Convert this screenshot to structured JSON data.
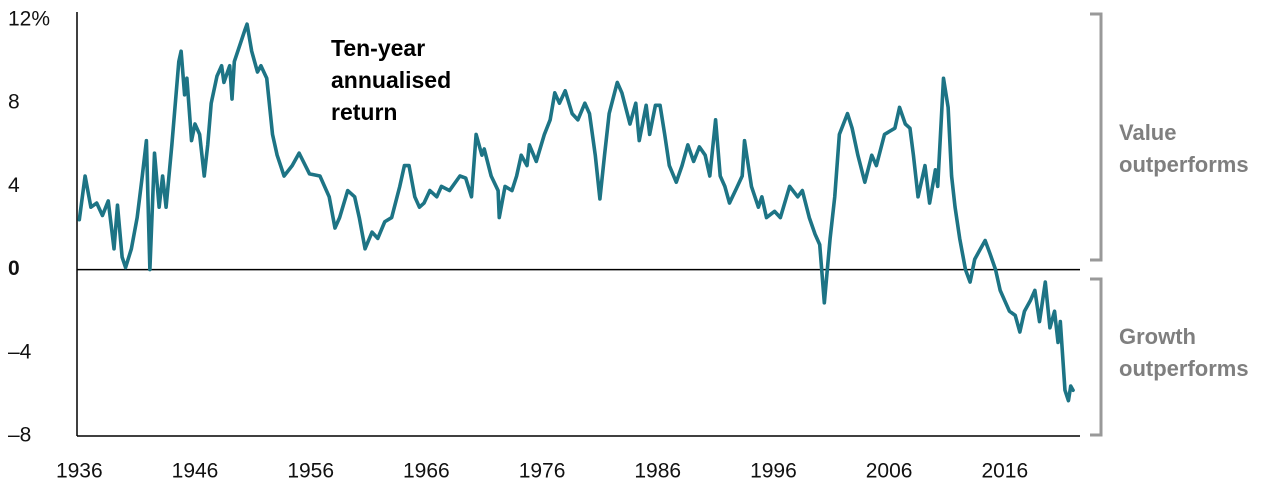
{
  "chart_data": {
    "type": "line",
    "annotation": [
      "Ten-year",
      "annualised",
      "return"
    ],
    "value_label": [
      "Value",
      "outperforms"
    ],
    "growth_label": [
      "Growth",
      "outperforms"
    ],
    "xlim": [
      1935.8,
      2022.5
    ],
    "xticks": [
      1936,
      1946,
      1956,
      1966,
      1976,
      1986,
      1996,
      2006,
      2016
    ],
    "ylim": [
      -8,
      12
    ],
    "yticks": [
      {
        "value": -8,
        "label": "–8"
      },
      {
        "value": -4,
        "label": "–4"
      },
      0,
      4,
      8,
      {
        "value": 12,
        "label": "12%"
      }
    ],
    "series": [
      {
        "color": "#1d7485",
        "x": [
          1936.0,
          1936.5,
          1937.0,
          1937.5,
          1938.0,
          1938.5,
          1939.0,
          1939.3,
          1939.7,
          1940.0,
          1940.5,
          1941.0,
          1941.4,
          1941.8,
          1942.1,
          1942.5,
          1942.9,
          1943.2,
          1943.5,
          1944.0,
          1944.6,
          1944.8,
          1945.1,
          1945.3,
          1945.7,
          1946.0,
          1946.4,
          1946.8,
          1947.1,
          1947.4,
          1947.9,
          1948.3,
          1948.5,
          1949.0,
          1949.2,
          1949.4,
          1950.3,
          1950.5,
          1950.9,
          1951.4,
          1951.7,
          1952.2,
          1952.7,
          1953.1,
          1953.7,
          1954.4,
          1955.0,
          1955.9,
          1956.8,
          1957.6,
          1958.1,
          1958.5,
          1959.2,
          1959.8,
          1960.2,
          1960.7,
          1961.3,
          1961.8,
          1962.4,
          1963.0,
          1963.7,
          1964.1,
          1964.5,
          1965.0,
          1965.4,
          1965.8,
          1966.3,
          1966.9,
          1967.3,
          1968.0,
          1968.9,
          1969.4,
          1969.9,
          1970.3,
          1970.8,
          1971.0,
          1971.6,
          1972.2,
          1972.3,
          1972.8,
          1973.4,
          1973.8,
          1974.2,
          1974.7,
          1974.9,
          1975.5,
          1976.2,
          1976.7,
          1977.1,
          1977.5,
          1978.0,
          1978.6,
          1979.1,
          1979.7,
          1980.1,
          1980.6,
          1981.0,
          1981.4,
          1981.8,
          1982.5,
          1982.9,
          1983.6,
          1984.1,
          1984.4,
          1985.0,
          1985.3,
          1985.8,
          1986.2,
          1986.6,
          1987.0,
          1987.6,
          1988.1,
          1988.6,
          1989.1,
          1989.6,
          1990.1,
          1990.5,
          1991.0,
          1991.4,
          1991.8,
          1992.2,
          1992.8,
          1993.3,
          1993.5,
          1994.1,
          1994.7,
          1995.0,
          1995.4,
          1996.1,
          1996.6,
          1997.4,
          1998.1,
          1998.5,
          1999.1,
          1999.6,
          2000.0,
          2000.4,
          2000.9,
          2001.3,
          2001.7,
          2002.4,
          2002.8,
          2003.3,
          2003.9,
          2004.5,
          2004.9,
          2005.6,
          2006.5,
          2006.9,
          2007.4,
          2007.8,
          2008.1,
          2008.5,
          2009.1,
          2009.5,
          2010.0,
          2010.2,
          2010.7,
          2011.1,
          2011.4,
          2011.7,
          2012.1,
          2012.6,
          2013.0,
          2013.4,
          2013.9,
          2014.3,
          2014.7,
          2015.2,
          2015.6,
          2016.0,
          2016.4,
          2016.9,
          2017.3,
          2017.7,
          2018.2,
          2018.6,
          2019.0,
          2019.5,
          2019.9,
          2020.3,
          2020.6,
          2020.8,
          2021.2,
          2021.5,
          2021.7,
          2021.9
        ],
        "values": [
          2.4,
          4.5,
          3.0,
          3.2,
          2.6,
          3.3,
          1.0,
          3.1,
          0.6,
          0.1,
          1.0,
          2.5,
          4.3,
          6.2,
          0.0,
          5.6,
          3.0,
          4.5,
          3.0,
          6.0,
          10.0,
          10.5,
          8.4,
          9.2,
          6.2,
          7.0,
          6.5,
          4.5,
          6.0,
          8.0,
          9.3,
          9.8,
          9.0,
          9.8,
          8.2,
          10.0,
          11.5,
          11.8,
          10.5,
          9.5,
          9.8,
          9.2,
          6.5,
          5.5,
          4.5,
          5.0,
          5.6,
          4.6,
          4.5,
          3.5,
          2.0,
          2.5,
          3.8,
          3.5,
          2.5,
          1.0,
          1.8,
          1.5,
          2.3,
          2.5,
          4.0,
          5.0,
          5.0,
          3.5,
          3.0,
          3.2,
          3.8,
          3.5,
          4.0,
          3.8,
          4.5,
          4.4,
          3.5,
          6.5,
          5.5,
          5.8,
          4.5,
          3.8,
          2.5,
          4.0,
          3.8,
          4.5,
          5.5,
          5.0,
          6.0,
          5.2,
          6.5,
          7.2,
          8.5,
          8.0,
          8.6,
          7.5,
          7.2,
          8.0,
          7.5,
          5.5,
          3.4,
          5.5,
          7.5,
          9.0,
          8.5,
          7.0,
          8.0,
          6.2,
          7.9,
          6.5,
          7.9,
          7.9,
          6.5,
          5.0,
          4.2,
          5.0,
          6.0,
          5.2,
          5.9,
          5.5,
          4.5,
          7.2,
          4.5,
          4.0,
          3.2,
          3.9,
          4.5,
          6.2,
          4.0,
          3.0,
          3.5,
          2.5,
          2.8,
          2.5,
          4.0,
          3.5,
          3.8,
          2.5,
          1.7,
          1.2,
          -1.6,
          1.5,
          3.5,
          6.5,
          7.5,
          6.8,
          5.5,
          4.2,
          5.5,
          5.0,
          6.5,
          6.8,
          7.8,
          7.0,
          6.8,
          5.5,
          3.5,
          5.0,
          3.2,
          4.8,
          4.0,
          9.2,
          7.8,
          4.5,
          3.0,
          1.5,
          0.0,
          -0.6,
          0.5,
          1.0,
          1.4,
          0.8,
          0.0,
          -1.0,
          -1.5,
          -2.0,
          -2.2,
          -3.0,
          -2.0,
          -1.5,
          -1.0,
          -2.5,
          -0.6,
          -2.8,
          -2.0,
          -3.5,
          -2.5,
          -5.8,
          -6.3,
          -5.6,
          -5.8
        ]
      }
    ]
  }
}
